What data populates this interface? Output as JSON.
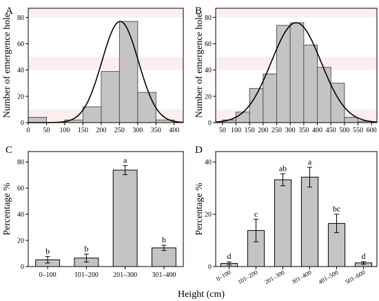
{
  "shared_xlabel": "Height (cm)",
  "chart_data": [
    {
      "panel": "A",
      "type": "bar",
      "ylabel": "Number of emergence hole",
      "xlabel": "",
      "xlim": [
        0,
        425
      ],
      "ylim": [
        0,
        87
      ],
      "xticks": [
        0,
        50,
        100,
        150,
        200,
        250,
        300,
        350,
        400
      ],
      "yticks": [
        0,
        20,
        40,
        60,
        80
      ],
      "bins": [
        {
          "x0": 0,
          "x1": 50,
          "value": 4
        },
        {
          "x0": 50,
          "x1": 100,
          "value": 0
        },
        {
          "x0": 100,
          "x1": 150,
          "value": 2
        },
        {
          "x0": 150,
          "x1": 200,
          "value": 12
        },
        {
          "x0": 200,
          "x1": 250,
          "value": 39
        },
        {
          "x0": 250,
          "x1": 300,
          "value": 77
        },
        {
          "x0": 300,
          "x1": 350,
          "value": 23
        },
        {
          "x0": 350,
          "x1": 400,
          "value": 2
        }
      ],
      "normal_curve": {
        "mean": 252,
        "sd": 50,
        "peak": 77
      },
      "background_bands": true,
      "grid": false
    },
    {
      "panel": "B",
      "type": "bar",
      "ylabel": "Number of emergence hole",
      "xlabel": "",
      "xlim": [
        25,
        620
      ],
      "ylim": [
        0,
        87
      ],
      "xticks": [
        50,
        100,
        150,
        200,
        250,
        300,
        350,
        400,
        450,
        500,
        550,
        600
      ],
      "yticks": [
        0,
        20,
        40,
        60,
        80
      ],
      "bins": [
        {
          "x0": 50,
          "x1": 100,
          "value": 2
        },
        {
          "x0": 100,
          "x1": 150,
          "value": 8
        },
        {
          "x0": 150,
          "x1": 200,
          "value": 26
        },
        {
          "x0": 200,
          "x1": 250,
          "value": 37
        },
        {
          "x0": 250,
          "x1": 300,
          "value": 74
        },
        {
          "x0": 300,
          "x1": 350,
          "value": 76
        },
        {
          "x0": 350,
          "x1": 400,
          "value": 59
        },
        {
          "x0": 400,
          "x1": 450,
          "value": 42
        },
        {
          "x0": 450,
          "x1": 500,
          "value": 30
        },
        {
          "x0": 500,
          "x1": 550,
          "value": 4
        },
        {
          "x0": 550,
          "x1": 600,
          "value": 1
        }
      ],
      "normal_curve": {
        "mean": 322,
        "sd": 92,
        "peak": 76
      },
      "background_bands": true,
      "grid": false
    },
    {
      "panel": "C",
      "type": "bar",
      "ylabel": "Percentage %",
      "xlabel": "",
      "ylim": [
        0,
        88
      ],
      "yticks": [
        0,
        20,
        40,
        60,
        80
      ],
      "categories": [
        "0–100",
        "101–200",
        "201–300",
        "301–400"
      ],
      "values": [
        5.2,
        6.5,
        73.8,
        14.3
      ],
      "errors": [
        2.5,
        3.0,
        3.5,
        2.0
      ],
      "letters": [
        "b",
        "b",
        "a",
        "b"
      ],
      "grid": false
    },
    {
      "panel": "D",
      "type": "bar",
      "ylabel": "Percentage %",
      "xlabel": "",
      "ylim": [
        0,
        44
      ],
      "yticks": [
        0,
        20,
        40
      ],
      "categories": [
        "0–100",
        "101–200",
        "201–300",
        "301–400",
        "401–500",
        "501–600"
      ],
      "values": [
        1.2,
        13.8,
        33.2,
        34.2,
        16.5,
        1.4
      ],
      "errors": [
        0.6,
        4.3,
        2.3,
        3.8,
        3.5,
        0.5
      ],
      "letters": [
        "d",
        "c",
        "ab",
        "a",
        "bc",
        "d"
      ],
      "grid": false
    }
  ],
  "colors": {
    "bar_fill": "#c4c4c4",
    "bar_stroke": "#555555",
    "band_fill": "#fbeeed",
    "axis": "#000000",
    "curve": "#000000"
  }
}
